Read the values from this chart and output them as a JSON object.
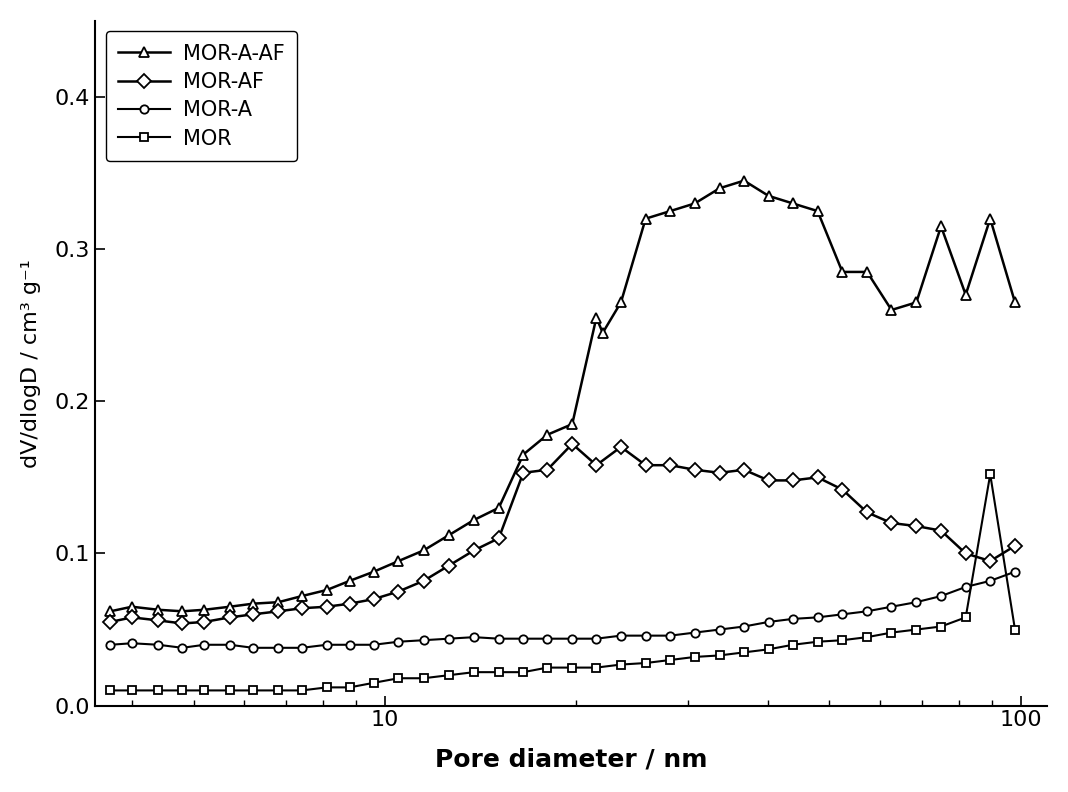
{
  "title": "",
  "xlabel": "Pore diameter / nm",
  "ylabel": "dV/dlogD / cm³ g⁻¹",
  "xlim": [
    3.5,
    110
  ],
  "ylim": [
    0.0,
    0.45
  ],
  "yticks": [
    0.0,
    0.1,
    0.2,
    0.3,
    0.4
  ],
  "series": {
    "MOR-A-AF": {
      "marker": "^",
      "color": "#000000",
      "linewidth": 1.8,
      "markersize": 7,
      "x": [
        3.7,
        4.0,
        4.4,
        4.8,
        5.2,
        5.7,
        6.2,
        6.8,
        7.4,
        8.1,
        8.8,
        9.6,
        10.5,
        11.5,
        12.6,
        13.8,
        15.1,
        16.5,
        18.0,
        19.7,
        21.5,
        22.0,
        23.5,
        25.7,
        28.1,
        30.7,
        33.6,
        36.7,
        40.1,
        43.8,
        47.9,
        52.4,
        57.3,
        62.6,
        68.5,
        74.9,
        81.9,
        89.5,
        97.9
      ],
      "y": [
        0.062,
        0.065,
        0.063,
        0.062,
        0.063,
        0.065,
        0.067,
        0.068,
        0.072,
        0.076,
        0.082,
        0.088,
        0.095,
        0.102,
        0.112,
        0.122,
        0.13,
        0.165,
        0.178,
        0.185,
        0.255,
        0.245,
        0.265,
        0.32,
        0.325,
        0.33,
        0.34,
        0.345,
        0.335,
        0.33,
        0.325,
        0.285,
        0.285,
        0.26,
        0.265,
        0.315,
        0.27,
        0.32,
        0.265
      ]
    },
    "MOR-AF": {
      "marker": "D",
      "color": "#000000",
      "linewidth": 1.8,
      "markersize": 7,
      "x": [
        3.7,
        4.0,
        4.4,
        4.8,
        5.2,
        5.7,
        6.2,
        6.8,
        7.4,
        8.1,
        8.8,
        9.6,
        10.5,
        11.5,
        12.6,
        13.8,
        15.1,
        16.5,
        18.0,
        19.7,
        21.5,
        23.5,
        25.7,
        28.1,
        30.7,
        33.6,
        36.7,
        40.1,
        43.8,
        47.9,
        52.4,
        57.3,
        62.6,
        68.5,
        74.9,
        81.9,
        89.5,
        97.9
      ],
      "y": [
        0.055,
        0.058,
        0.056,
        0.054,
        0.055,
        0.058,
        0.06,
        0.062,
        0.064,
        0.065,
        0.067,
        0.07,
        0.075,
        0.082,
        0.092,
        0.102,
        0.11,
        0.153,
        0.155,
        0.172,
        0.158,
        0.17,
        0.158,
        0.158,
        0.155,
        0.153,
        0.155,
        0.148,
        0.148,
        0.15,
        0.142,
        0.127,
        0.12,
        0.118,
        0.115,
        0.1,
        0.095,
        0.105
      ]
    },
    "MOR-A": {
      "marker": "o",
      "color": "#000000",
      "linewidth": 1.5,
      "markersize": 6,
      "x": [
        3.7,
        4.0,
        4.4,
        4.8,
        5.2,
        5.7,
        6.2,
        6.8,
        7.4,
        8.1,
        8.8,
        9.6,
        10.5,
        11.5,
        12.6,
        13.8,
        15.1,
        16.5,
        18.0,
        19.7,
        21.5,
        23.5,
        25.7,
        28.1,
        30.7,
        33.6,
        36.7,
        40.1,
        43.8,
        47.9,
        52.4,
        57.3,
        62.6,
        68.5,
        74.9,
        81.9,
        89.5,
        97.9
      ],
      "y": [
        0.04,
        0.041,
        0.04,
        0.038,
        0.04,
        0.04,
        0.038,
        0.038,
        0.038,
        0.04,
        0.04,
        0.04,
        0.042,
        0.043,
        0.044,
        0.045,
        0.044,
        0.044,
        0.044,
        0.044,
        0.044,
        0.046,
        0.046,
        0.046,
        0.048,
        0.05,
        0.052,
        0.055,
        0.057,
        0.058,
        0.06,
        0.062,
        0.065,
        0.068,
        0.072,
        0.078,
        0.082,
        0.088
      ]
    },
    "MOR": {
      "marker": "s",
      "color": "#000000",
      "linewidth": 1.5,
      "markersize": 6,
      "x": [
        3.7,
        4.0,
        4.4,
        4.8,
        5.2,
        5.7,
        6.2,
        6.8,
        7.4,
        8.1,
        8.8,
        9.6,
        10.5,
        11.5,
        12.6,
        13.8,
        15.1,
        16.5,
        18.0,
        19.7,
        21.5,
        23.5,
        25.7,
        28.1,
        30.7,
        33.6,
        36.7,
        40.1,
        43.8,
        47.9,
        52.4,
        57.3,
        62.6,
        68.5,
        74.9,
        81.9,
        89.5,
        97.9
      ],
      "y": [
        0.01,
        0.01,
        0.01,
        0.01,
        0.01,
        0.01,
        0.01,
        0.01,
        0.01,
        0.012,
        0.012,
        0.015,
        0.018,
        0.018,
        0.02,
        0.022,
        0.022,
        0.022,
        0.025,
        0.025,
        0.025,
        0.027,
        0.028,
        0.03,
        0.032,
        0.033,
        0.035,
        0.037,
        0.04,
        0.042,
        0.043,
        0.045,
        0.048,
        0.05,
        0.052,
        0.058,
        0.152,
        0.05
      ]
    }
  },
  "legend_order": [
    "MOR-A-AF",
    "MOR-AF",
    "MOR-A",
    "MOR"
  ],
  "marker_facecolor": "white",
  "background_color": "#ffffff"
}
